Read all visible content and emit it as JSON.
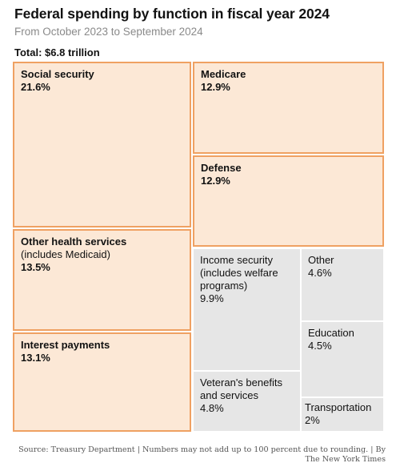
{
  "title": "Federal spending by function in fiscal year 2024",
  "subtitle": "From October 2023 to September 2024",
  "total_label": "Total: $6.8 trillion",
  "source": "Source: Treasury Department | Numbers may not add up to 100 percent due to rounding. | By The New York Times",
  "colors": {
    "highlight_fill": "#fce8d6",
    "highlight_border": "#efa162",
    "other_fill": "#e6e6e6"
  },
  "chart_data": {
    "type": "treemap",
    "title": "Federal spending by function in fiscal year 2024",
    "subtitle": "From October 2023 to September 2024",
    "total": "Total: $6.8 trillion",
    "unit": "percent of total spending",
    "items": [
      {
        "id": "social-security",
        "label": "Social security",
        "note": "",
        "value": 21.6,
        "pct_label": "21.6%",
        "highlight": true
      },
      {
        "id": "medicare",
        "label": "Medicare",
        "note": "",
        "value": 12.9,
        "pct_label": "12.9%",
        "highlight": true
      },
      {
        "id": "defense",
        "label": "Defense",
        "note": "",
        "value": 12.9,
        "pct_label": "12.9%",
        "highlight": true
      },
      {
        "id": "other-health",
        "label": "Other health services",
        "note": "(includes Medicaid)",
        "value": 13.5,
        "pct_label": "13.5%",
        "highlight": true
      },
      {
        "id": "income-security",
        "label": "Income security\n(includes welfare\nprograms)",
        "note": "",
        "value": 9.9,
        "pct_label": "9.9%",
        "highlight": false
      },
      {
        "id": "other",
        "label": "Other",
        "note": "",
        "value": 4.6,
        "pct_label": "4.6%",
        "highlight": false
      },
      {
        "id": "interest",
        "label": "Interest payments",
        "note": "",
        "value": 13.1,
        "pct_label": "13.1%",
        "highlight": true
      },
      {
        "id": "education",
        "label": "Education",
        "note": "",
        "value": 4.5,
        "pct_label": "4.5%",
        "highlight": false
      },
      {
        "id": "veterans",
        "label": "Veteran's benefits\nand services",
        "note": "",
        "value": 4.8,
        "pct_label": "4.8%",
        "highlight": false
      },
      {
        "id": "transportation",
        "label": "Transportation",
        "note": "",
        "value": 2,
        "pct_label": "2%",
        "highlight": false
      }
    ]
  }
}
